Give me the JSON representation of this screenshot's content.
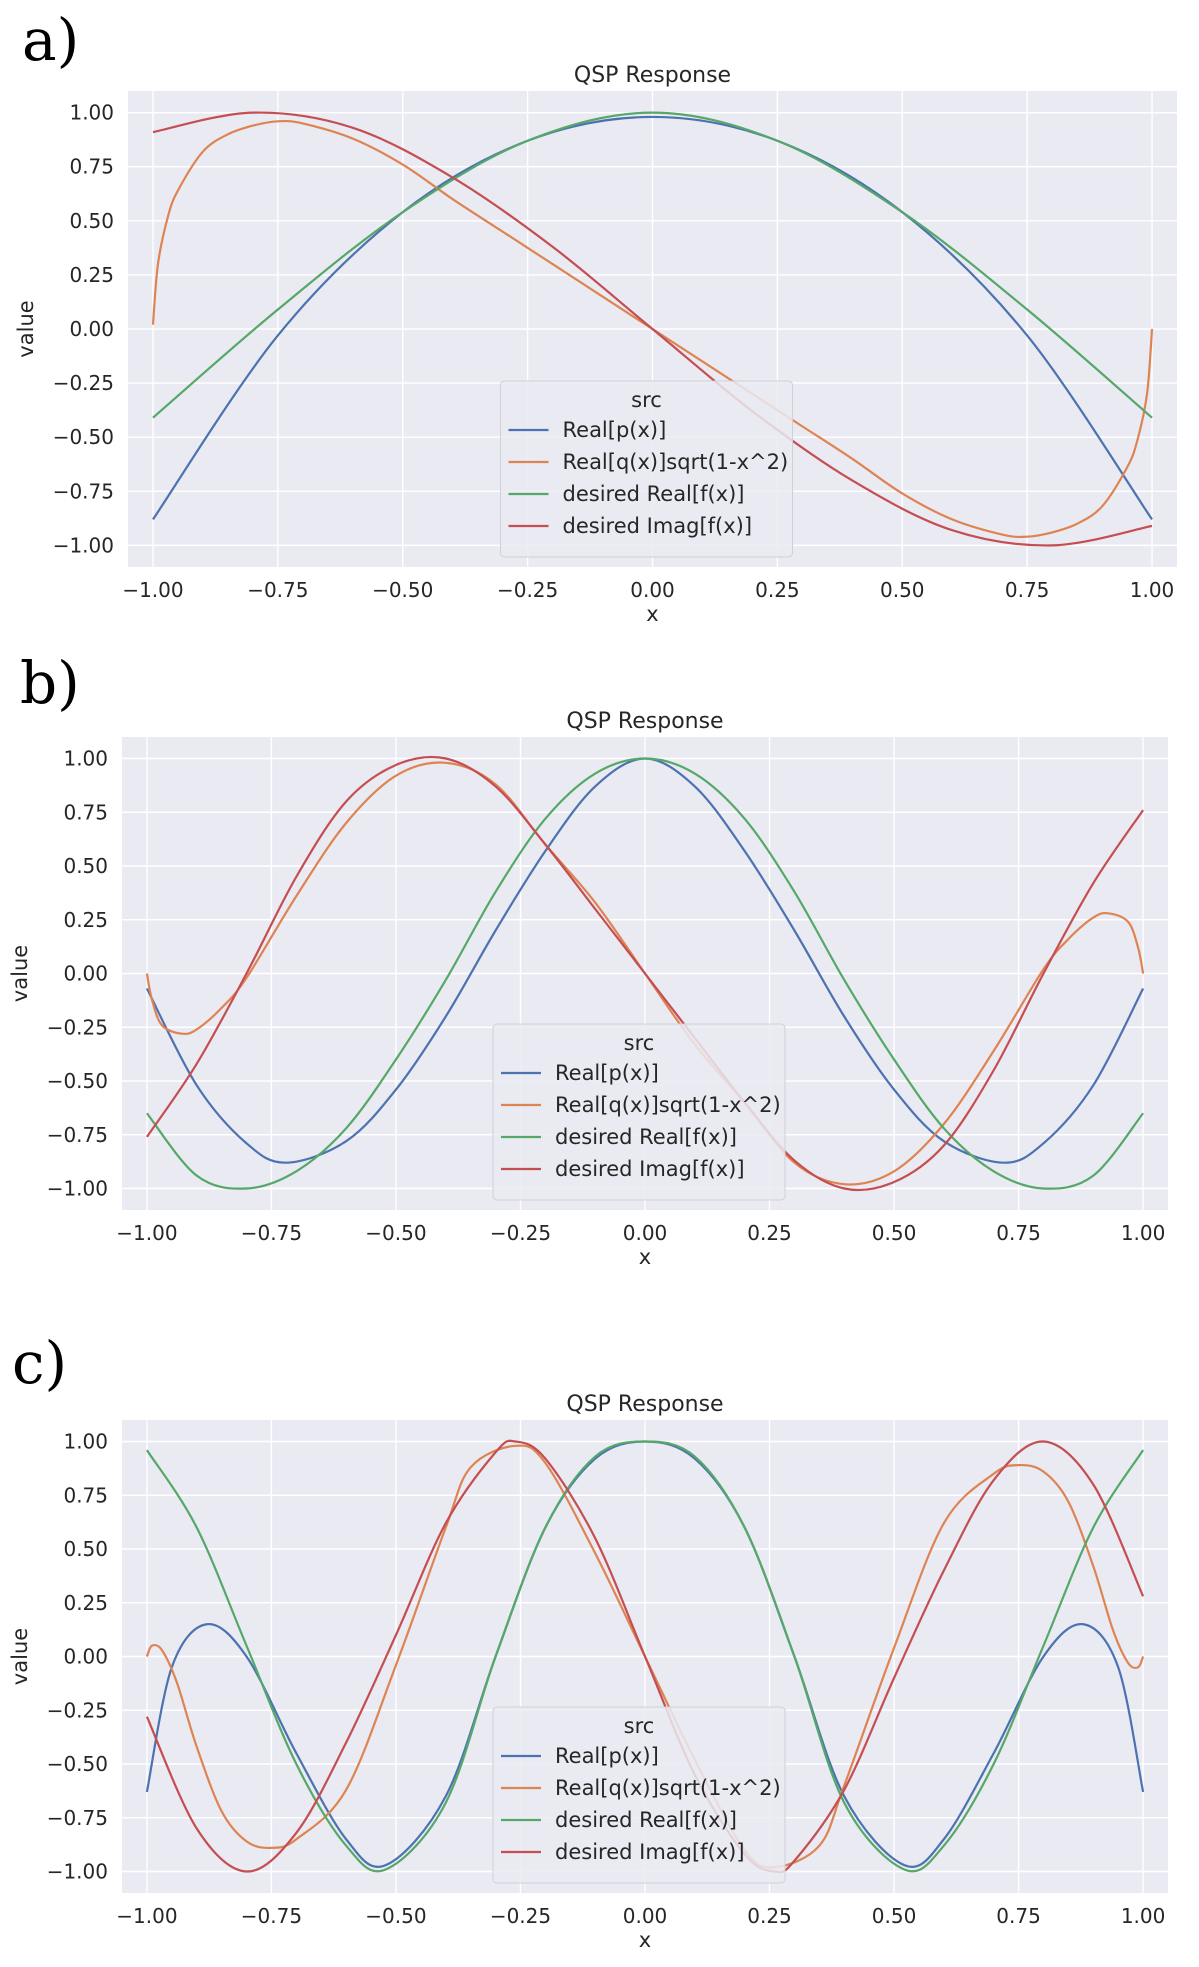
{
  "colors": {
    "background": "#eaeaf2",
    "grid": "#ffffff",
    "series": [
      "#4c72b0",
      "#dd8452",
      "#55a868",
      "#c44e52"
    ]
  },
  "chart_data": [
    {
      "panel_label": "a)",
      "type": "line",
      "title": "QSP Response",
      "xlabel": "x",
      "ylabel": "value",
      "xlim": [
        -1.05,
        1.05
      ],
      "ylim": [
        -1.1,
        1.1
      ],
      "xticks": [
        "−1.00",
        "−0.75",
        "−0.50",
        "−0.25",
        "0.00",
        "0.25",
        "0.50",
        "0.75",
        "1.00"
      ],
      "yticks": [
        "−1.00",
        "−0.75",
        "−0.50",
        "−0.25",
        "0.00",
        "0.25",
        "0.50",
        "0.75",
        "1.00"
      ],
      "grid": true,
      "legend": {
        "title": "src",
        "placement": "lower center",
        "entries": [
          "Real[p(x)]",
          "Real[q(x)]sqrt(1-x^2)",
          "desired Real[f(x)]",
          "desired Imag[f(x)]"
        ]
      },
      "series": [
        {
          "name": "Real[p(x)]",
          "x": [
            -1,
            -0.75,
            -0.5,
            -0.25,
            0,
            0.25,
            0.5,
            0.75,
            1
          ],
          "y": [
            -0.88,
            -0.03,
            0.54,
            0.87,
            0.98,
            0.87,
            0.54,
            -0.03,
            -0.88
          ]
        },
        {
          "name": "Real[q(x)]sqrt(1-x^2)",
          "x": [
            -1,
            -0.99,
            -0.97,
            -0.95,
            -0.9,
            -0.85,
            -0.8,
            -0.75,
            -0.7,
            -0.6,
            -0.5,
            -0.4,
            -0.3,
            -0.2,
            -0.1,
            0,
            0.1,
            0.2,
            0.3,
            0.4,
            0.5,
            0.6,
            0.7,
            0.75,
            0.8,
            0.85,
            0.9,
            0.95,
            0.97,
            0.99,
            1
          ],
          "y": [
            0.02,
            0.3,
            0.52,
            0.64,
            0.82,
            0.9,
            0.94,
            0.96,
            0.95,
            0.88,
            0.76,
            0.6,
            0.45,
            0.3,
            0.15,
            0.0,
            -0.15,
            -0.3,
            -0.45,
            -0.6,
            -0.76,
            -0.88,
            -0.95,
            -0.96,
            -0.94,
            -0.9,
            -0.82,
            -0.64,
            -0.52,
            -0.3,
            0.0
          ]
        },
        {
          "name": "desired Real[f(x)]",
          "x": [
            -1,
            -0.75,
            -0.5,
            -0.25,
            0,
            0.25,
            0.5,
            0.75,
            1
          ],
          "y": [
            -0.41,
            0.09,
            0.54,
            0.87,
            1.0,
            0.87,
            0.54,
            0.09,
            -0.41
          ]
        },
        {
          "name": "desired Imag[f(x)]",
          "x": [
            -1,
            -0.8,
            -0.6,
            -0.4,
            -0.2,
            0,
            0.2,
            0.4,
            0.6,
            0.8,
            1
          ],
          "y": [
            0.91,
            1.0,
            0.93,
            0.7,
            0.38,
            0.0,
            -0.38,
            -0.7,
            -0.93,
            -1.0,
            -0.91
          ]
        }
      ]
    },
    {
      "panel_label": "b)",
      "type": "line",
      "title": "QSP Response",
      "xlabel": "x",
      "ylabel": "value",
      "xlim": [
        -1.05,
        1.05
      ],
      "ylim": [
        -1.1,
        1.1
      ],
      "xticks": [
        "−1.00",
        "−0.75",
        "−0.50",
        "−0.25",
        "0.00",
        "0.25",
        "0.50",
        "0.75",
        "1.00"
      ],
      "yticks": [
        "−1.00",
        "−0.75",
        "−0.50",
        "−0.25",
        "0.00",
        "0.25",
        "0.50",
        "0.75",
        "1.00"
      ],
      "grid": true,
      "legend": {
        "title": "src",
        "placement": "lower center",
        "entries": [
          "Real[p(x)]",
          "Real[q(x)]sqrt(1-x^2)",
          "desired Real[f(x)]",
          "desired Imag[f(x)]"
        ]
      },
      "series": [
        {
          "name": "Real[p(x)]",
          "x": [
            -1,
            -0.9,
            -0.8,
            -0.72,
            -0.6,
            -0.5,
            -0.4,
            -0.3,
            -0.2,
            -0.1,
            0,
            0.1,
            0.2,
            0.3,
            0.4,
            0.5,
            0.6,
            0.72,
            0.8,
            0.9,
            1
          ],
          "y": [
            -0.07,
            -0.52,
            -0.79,
            -0.88,
            -0.78,
            -0.54,
            -0.2,
            0.2,
            0.57,
            0.87,
            1.0,
            0.87,
            0.57,
            0.2,
            -0.2,
            -0.54,
            -0.78,
            -0.88,
            -0.79,
            -0.52,
            -0.07
          ]
        },
        {
          "name": "Real[q(x)]sqrt(1-x^2)",
          "x": [
            -1,
            -0.99,
            -0.97,
            -0.93,
            -0.9,
            -0.85,
            -0.8,
            -0.7,
            -0.6,
            -0.5,
            -0.4,
            -0.3,
            -0.2,
            -0.1,
            0,
            0.1,
            0.2,
            0.3,
            0.4,
            0.5,
            0.6,
            0.7,
            0.8,
            0.85,
            0.9,
            0.93,
            0.97,
            0.99,
            1
          ],
          "y": [
            0.0,
            -0.12,
            -0.24,
            -0.28,
            -0.26,
            -0.16,
            -0.02,
            0.36,
            0.7,
            0.92,
            0.98,
            0.88,
            0.6,
            0.33,
            0.0,
            -0.33,
            -0.6,
            -0.88,
            -0.98,
            -0.92,
            -0.7,
            -0.36,
            0.02,
            0.16,
            0.26,
            0.28,
            0.24,
            0.12,
            0.0
          ]
        },
        {
          "name": "desired Real[f(x)]",
          "x": [
            -1,
            -0.9,
            -0.8,
            -0.7,
            -0.6,
            -0.5,
            -0.4,
            -0.3,
            -0.2,
            -0.1,
            0,
            0.1,
            0.2,
            0.3,
            0.4,
            0.5,
            0.6,
            0.7,
            0.8,
            0.9,
            1
          ],
          "y": [
            -0.65,
            -0.94,
            -1.0,
            -0.92,
            -0.72,
            -0.4,
            -0.03,
            0.38,
            0.72,
            0.93,
            1.0,
            0.93,
            0.72,
            0.38,
            -0.03,
            -0.4,
            -0.72,
            -0.92,
            -1.0,
            -0.94,
            -0.65
          ]
        },
        {
          "name": "desired Imag[f(x)]",
          "x": [
            -1,
            -0.9,
            -0.8,
            -0.7,
            -0.6,
            -0.5,
            -0.4,
            -0.3,
            -0.2,
            -0.1,
            0,
            0.1,
            0.2,
            0.3,
            0.4,
            0.5,
            0.6,
            0.7,
            0.8,
            0.9,
            1
          ],
          "y": [
            -0.76,
            -0.42,
            0.0,
            0.45,
            0.8,
            0.97,
            1.0,
            0.87,
            0.6,
            0.3,
            0.0,
            -0.3,
            -0.6,
            -0.87,
            -1.0,
            -0.97,
            -0.8,
            -0.45,
            0.0,
            0.42,
            0.76
          ]
        }
      ]
    },
    {
      "panel_label": "c)",
      "type": "line",
      "title": "QSP Response",
      "xlabel": "x",
      "ylabel": "value",
      "xlim": [
        -1.05,
        1.05
      ],
      "ylim": [
        -1.1,
        1.1
      ],
      "xticks": [
        "−1.00",
        "−0.75",
        "−0.50",
        "−0.25",
        "0.00",
        "0.25",
        "0.50",
        "0.75",
        "1.00"
      ],
      "yticks": [
        "−1.00",
        "−0.75",
        "−0.50",
        "−0.25",
        "0.00",
        "0.25",
        "0.50",
        "0.75",
        "1.00"
      ],
      "grid": true,
      "legend": {
        "title": "src",
        "placement": "lower center",
        "entries": [
          "Real[p(x)]",
          "Real[q(x)]sqrt(1-x^2)",
          "desired Real[f(x)]",
          "desired Imag[f(x)]"
        ]
      },
      "series": [
        {
          "name": "Real[p(x)]",
          "x": [
            -1,
            -0.95,
            -0.88,
            -0.8,
            -0.7,
            -0.6,
            -0.52,
            -0.4,
            -0.3,
            -0.2,
            -0.1,
            0,
            0.1,
            0.2,
            0.3,
            0.4,
            0.52,
            0.6,
            0.7,
            0.8,
            0.88,
            0.95,
            1
          ],
          "y": [
            -0.63,
            -0.05,
            0.15,
            0.0,
            -0.45,
            -0.85,
            -0.97,
            -0.65,
            0.0,
            0.6,
            0.92,
            1.0,
            0.92,
            0.6,
            0.0,
            -0.65,
            -0.97,
            -0.85,
            -0.45,
            0.0,
            0.15,
            -0.05,
            -0.63
          ]
        },
        {
          "name": "Real[q(x)]sqrt(1-x^2)",
          "x": [
            -1,
            -0.99,
            -0.97,
            -0.94,
            -0.9,
            -0.85,
            -0.8,
            -0.75,
            -0.7,
            -0.6,
            -0.5,
            -0.4,
            -0.35,
            -0.26,
            -0.2,
            -0.1,
            0,
            0.1,
            0.2,
            0.26,
            0.35,
            0.4,
            0.5,
            0.6,
            0.7,
            0.75,
            0.8,
            0.85,
            0.9,
            0.94,
            0.97,
            0.99,
            1
          ],
          "y": [
            0.0,
            0.05,
            0.03,
            -0.12,
            -0.42,
            -0.72,
            -0.86,
            -0.89,
            -0.85,
            -0.62,
            -0.04,
            0.6,
            0.88,
            0.98,
            0.9,
            0.48,
            0.0,
            -0.48,
            -0.9,
            -0.98,
            -0.88,
            -0.6,
            0.04,
            0.62,
            0.85,
            0.89,
            0.86,
            0.72,
            0.42,
            0.12,
            -0.03,
            -0.05,
            0.0
          ]
        },
        {
          "name": "desired Real[f(x)]",
          "x": [
            -1,
            -0.9,
            -0.8,
            -0.7,
            -0.6,
            -0.52,
            -0.4,
            -0.3,
            -0.2,
            -0.1,
            0,
            0.1,
            0.2,
            0.3,
            0.4,
            0.52,
            0.6,
            0.7,
            0.8,
            0.9,
            1
          ],
          "y": [
            0.96,
            0.6,
            0.05,
            -0.5,
            -0.88,
            -0.99,
            -0.68,
            0.0,
            0.6,
            0.93,
            1.0,
            0.93,
            0.6,
            0.0,
            -0.68,
            -0.99,
            -0.88,
            -0.5,
            0.05,
            0.6,
            0.96
          ]
        },
        {
          "name": "desired Imag[f(x)]",
          "x": [
            -1,
            -0.9,
            -0.8,
            -0.7,
            -0.6,
            -0.5,
            -0.4,
            -0.3,
            -0.26,
            -0.2,
            -0.1,
            0,
            0.1,
            0.2,
            0.26,
            0.3,
            0.4,
            0.5,
            0.6,
            0.7,
            0.8,
            0.9,
            1
          ],
          "y": [
            -0.28,
            -0.8,
            -1.0,
            -0.82,
            -0.4,
            0.1,
            0.62,
            0.95,
            1.0,
            0.92,
            0.55,
            0.0,
            -0.55,
            -0.92,
            -1.0,
            -0.95,
            -0.62,
            -0.1,
            0.4,
            0.82,
            1.0,
            0.8,
            0.28
          ]
        }
      ]
    }
  ]
}
